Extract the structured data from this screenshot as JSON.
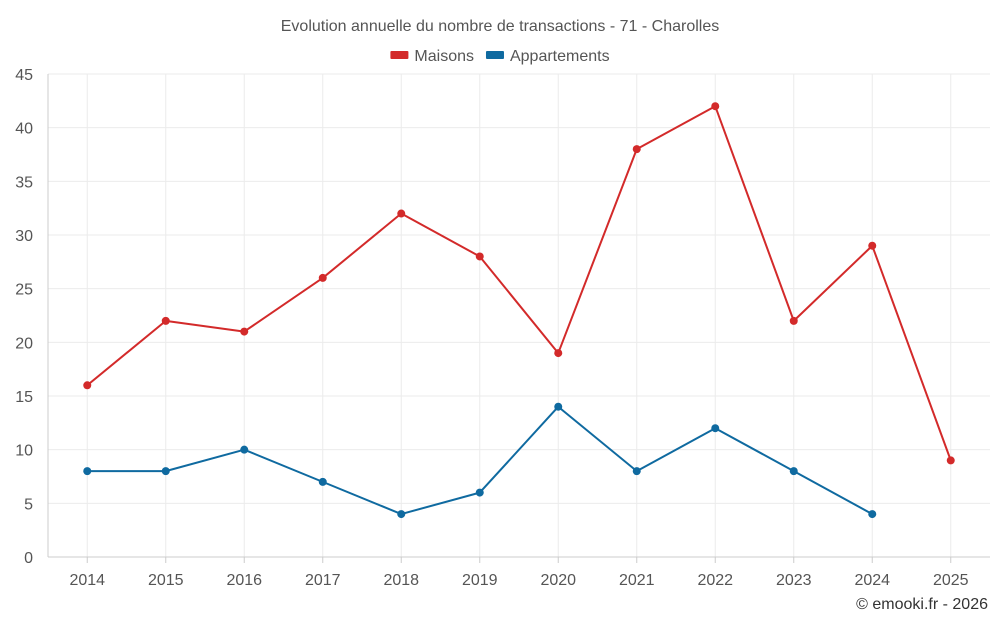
{
  "chart_data": {
    "type": "line",
    "title": "Evolution annuelle du nombre de transactions - 71 - Charolles",
    "categories": [
      "2014",
      "2015",
      "2016",
      "2017",
      "2018",
      "2019",
      "2020",
      "2021",
      "2022",
      "2023",
      "2024",
      "2025"
    ],
    "series": [
      {
        "name": "Maisons",
        "color": "#d32a2a",
        "values": [
          16,
          22,
          21,
          26,
          32,
          28,
          19,
          38,
          42,
          22,
          29,
          9
        ]
      },
      {
        "name": "Appartements",
        "color": "#0f6aa0",
        "values": [
          8,
          8,
          10,
          7,
          4,
          6,
          14,
          8,
          12,
          8,
          4,
          null
        ]
      }
    ],
    "ylim": [
      0,
      45
    ],
    "yticks": [
      0,
      5,
      10,
      15,
      20,
      25,
      30,
      35,
      40,
      45
    ],
    "xlabel": "",
    "ylabel": "",
    "grid": true,
    "legend": "top-center"
  },
  "credit": "© emooki.fr - 2026"
}
